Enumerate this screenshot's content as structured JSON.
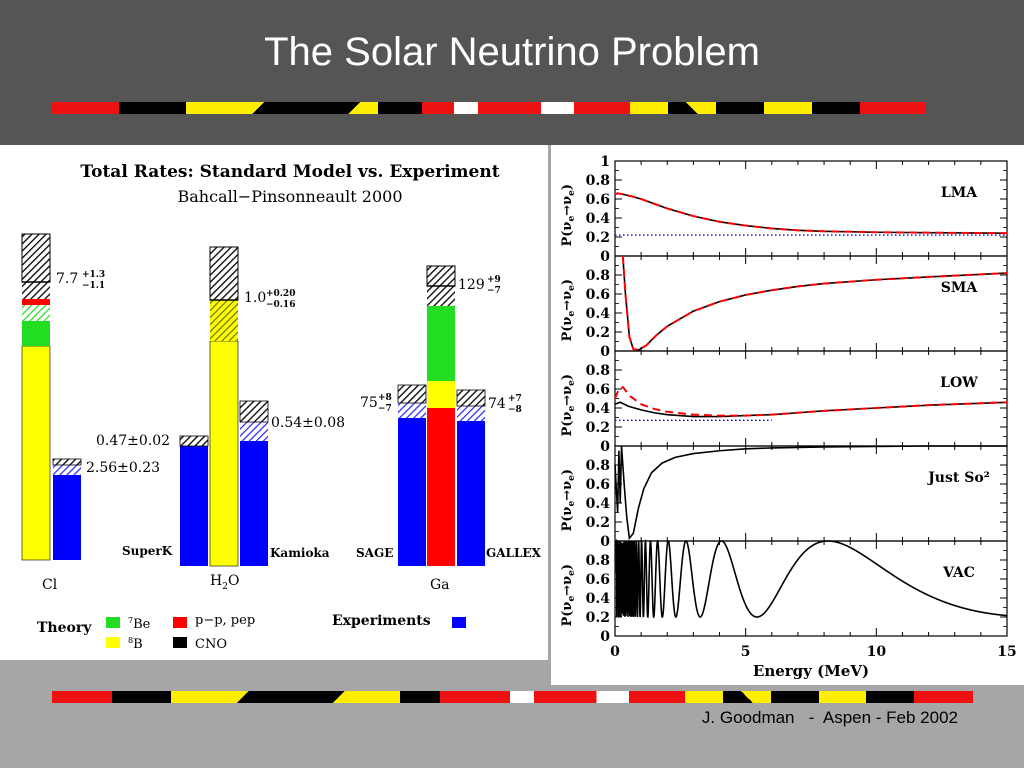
{
  "slide": {
    "title": "The Solar Neutrino Problem",
    "footer": "J. Goodman   -  Aspen - Feb 2002"
  },
  "colors": {
    "header_bg": "#555555",
    "slide_bg": "#a6a6a6",
    "flag_red": "#ee1111",
    "flag_yellow": "#ffee00",
    "flag_black": "#000000"
  },
  "chart_data": [
    {
      "type": "bar",
      "title": "Total Rates: Standard Model vs. Experiment",
      "subtitle": "Bahcall−Pinsonneault 2000",
      "component_colors": {
        "7Be": "#22dd22",
        "8B": "#ffff00",
        "p-p, pep": "#ff0000",
        "CNO": "#000000",
        "Experiments": "#0000ff",
        "uncertainty_hatch": "#000000"
      },
      "groups": [
        {
          "name": "Cl",
          "theory": {
            "value": 7.7,
            "plus": "+1.3",
            "minus": "−1.1",
            "label_main": "7.7",
            "components": [
              {
                "name": "8B",
                "value": 5.9
              },
              {
                "name": "7Be",
                "value": 1.15
              },
              {
                "name": "p-p, pep",
                "value": 0.2
              },
              {
                "name": "CNO",
                "value": 0.45
              }
            ]
          },
          "experiments": [
            {
              "name": "",
              "label": "2.56±0.23",
              "value": 2.56,
              "err": 0.23
            }
          ]
        },
        {
          "name": "H2O",
          "name_main": "H",
          "name_sub": "2",
          "name_tail": "O",
          "theory": {
            "value": 1.0,
            "plus": "+0.20",
            "minus": "−0.16",
            "label_main": "1.0",
            "components": [
              {
                "name": "8B",
                "value": 1.0
              }
            ]
          },
          "experiments": [
            {
              "name": "SuperK",
              "label": "0.47±0.02",
              "value": 0.47,
              "err": 0.02
            },
            {
              "name": "Kamioka",
              "label": "0.54±0.08",
              "value": 0.54,
              "err": 0.08
            }
          ]
        },
        {
          "name": "Ga",
          "theory": {
            "value": 129,
            "plus": "+9",
            "minus": "−7",
            "label_main": "129",
            "components": [
              {
                "name": "p-p, pep",
                "value": 70
              },
              {
                "name": "8B",
                "value": 12
              },
              {
                "name": "7Be",
                "value": 36
              },
              {
                "name": "CNO",
                "value": 11
              }
            ]
          },
          "experiments": [
            {
              "name": "SAGE",
              "label_main": "75",
              "plus": "+8",
              "minus": "−7",
              "value": 75,
              "err": 8
            },
            {
              "name": "GALLEX",
              "label_main": "74",
              "plus": "+7",
              "minus": "−8",
              "value": 74,
              "err": 8
            }
          ]
        }
      ],
      "legend": {
        "theory_label": "Theory",
        "experiments_label": "Experiments",
        "items": [
          {
            "key": "7Be",
            "sup": "7",
            "base": "Be",
            "color": "#22dd22"
          },
          {
            "key": "8B",
            "sup": "8",
            "base": "B",
            "color": "#ffff00"
          },
          {
            "key": "pp",
            "text": "p−p, pep",
            "color": "#ff0000"
          },
          {
            "key": "CNO",
            "text": "CNO",
            "color": "#000000"
          }
        ]
      }
    },
    {
      "type": "line",
      "xlabel": "Energy (MeV)",
      "ylabel_text": "P(νe→νe)",
      "ylabel_base": "P(ν",
      "ylabel_sub1": "e",
      "ylabel_arrow": "→ν",
      "ylabel_sub2": "e",
      "ylabel_close": ")",
      "xlim": [
        0,
        15
      ],
      "xticks": [
        "0",
        "5",
        "10",
        "15"
      ],
      "yticks_top": [
        "0",
        "0.2",
        "0.4",
        "0.6",
        "0.8",
        "1"
      ],
      "yticks": [
        "0",
        "0.2",
        "0.4",
        "0.6",
        "0.8"
      ],
      "panels": [
        {
          "label": "LMA",
          "series": [
            {
              "style": "solid-black",
              "x": [
                0.0,
                0.1,
                0.3,
                0.6,
                1,
                1.5,
                2,
                3,
                4,
                5,
                6,
                7,
                8,
                10,
                12,
                15
              ],
              "y": [
                0.65,
                0.66,
                0.65,
                0.63,
                0.6,
                0.55,
                0.5,
                0.42,
                0.36,
                0.32,
                0.29,
                0.27,
                0.26,
                0.25,
                0.245,
                0.24
              ]
            },
            {
              "style": "dashed-red",
              "x": [
                0.0,
                0.1,
                0.3,
                0.6,
                1,
                1.5,
                2,
                3,
                4,
                5,
                6,
                7,
                8,
                10,
                12,
                15
              ],
              "y": [
                0.65,
                0.66,
                0.65,
                0.63,
                0.6,
                0.55,
                0.5,
                0.42,
                0.36,
                0.32,
                0.29,
                0.27,
                0.26,
                0.25,
                0.245,
                0.24
              ]
            },
            {
              "style": "dotted-blue",
              "x": [
                0,
                15
              ],
              "y": [
                0.22,
                0.22
              ]
            }
          ]
        },
        {
          "label": "SMA",
          "series": [
            {
              "style": "solid-black",
              "x": [
                0.3,
                0.4,
                0.55,
                0.7,
                0.9,
                1.2,
                1.6,
                2,
                3,
                4,
                5,
                6,
                7,
                8,
                10,
                12,
                15
              ],
              "y": [
                1.0,
                0.6,
                0.15,
                0.02,
                0.01,
                0.06,
                0.17,
                0.26,
                0.42,
                0.52,
                0.59,
                0.64,
                0.68,
                0.71,
                0.75,
                0.78,
                0.82
              ]
            },
            {
              "style": "dashed-red",
              "x": [
                0.3,
                0.4,
                0.55,
                0.7,
                0.9,
                1.2,
                1.6,
                2,
                3,
                4,
                5,
                6,
                7,
                8,
                10,
                12,
                15
              ],
              "y": [
                1.0,
                0.6,
                0.15,
                0.02,
                0.01,
                0.06,
                0.17,
                0.26,
                0.42,
                0.52,
                0.59,
                0.64,
                0.68,
                0.71,
                0.75,
                0.78,
                0.82
              ]
            }
          ]
        },
        {
          "label": "LOW",
          "series": [
            {
              "style": "solid-black",
              "x": [
                0.0,
                0.2,
                0.5,
                1,
                1.5,
                2,
                3,
                4,
                5,
                6,
                7,
                8,
                10,
                12,
                15
              ],
              "y": [
                0.44,
                0.46,
                0.42,
                0.38,
                0.35,
                0.33,
                0.31,
                0.31,
                0.32,
                0.33,
                0.35,
                0.37,
                0.4,
                0.43,
                0.46
              ]
            },
            {
              "style": "dashed-red",
              "x": [
                0.0,
                0.15,
                0.3,
                0.6,
                1,
                1.5,
                2,
                3,
                4,
                5,
                6,
                7,
                8,
                10,
                12,
                15
              ],
              "y": [
                0.5,
                0.6,
                0.62,
                0.52,
                0.44,
                0.39,
                0.36,
                0.33,
                0.32,
                0.32,
                0.33,
                0.35,
                0.37,
                0.4,
                0.43,
                0.46
              ]
            },
            {
              "style": "dotted-blue",
              "x": [
                0,
                6
              ],
              "y": [
                0.27,
                0.27
              ]
            }
          ]
        },
        {
          "label": "Just So²",
          "series": [
            {
              "style": "solid-black",
              "x": [
                0.0,
                0.1,
                0.15,
                0.2,
                0.25,
                0.3,
                0.35,
                0.45,
                0.55,
                0.7,
                0.9,
                1.1,
                1.4,
                1.8,
                2.3,
                3,
                4,
                5,
                6,
                8,
                10,
                12,
                15
              ],
              "y": [
                0.8,
                0.3,
                0.95,
                0.4,
                1.0,
                0.8,
                0.6,
                0.25,
                0.03,
                0.08,
                0.35,
                0.55,
                0.72,
                0.82,
                0.88,
                0.92,
                0.95,
                0.97,
                0.98,
                0.99,
                0.995,
                1.0,
                1.0
              ]
            }
          ]
        },
        {
          "label": "VAC",
          "series": [
            {
              "style": "solid-black",
              "oscillation": true,
              "amp": 0.4,
              "center": 0.6,
              "phase_param": 8.15,
              "x_start": 0.05,
              "x_end": 15
            }
          ]
        }
      ]
    }
  ]
}
